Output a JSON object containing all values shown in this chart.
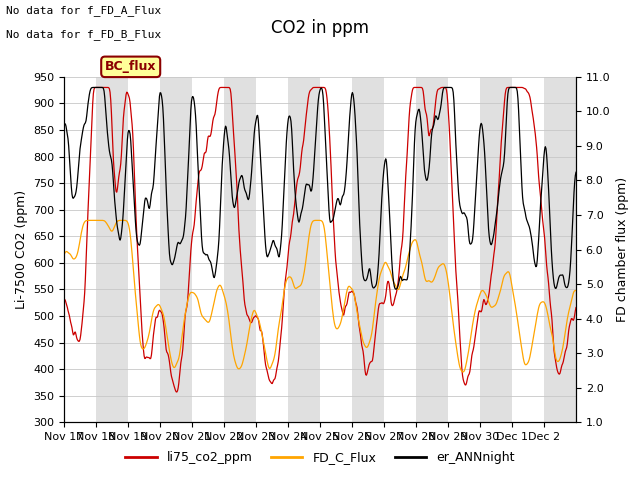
{
  "title": "CO2 in ppm",
  "ylabel_left": "Li-7500 CO2 (ppm)",
  "ylabel_right": "FD chamber flux (ppm)",
  "ylim_left": [
    300,
    950
  ],
  "ylim_right": [
    1.0,
    11.0
  ],
  "yticks_left": [
    300,
    350,
    400,
    450,
    500,
    550,
    600,
    650,
    700,
    750,
    800,
    850,
    900,
    950
  ],
  "yticks_right": [
    1.0,
    2.0,
    3.0,
    4.0,
    5.0,
    6.0,
    7.0,
    8.0,
    9.0,
    10.0,
    11.0
  ],
  "xtick_labels": [
    "Nov 17",
    "Nov 18",
    "Nov 19",
    "Nov 20",
    "Nov 21",
    "Nov 22",
    "Nov 23",
    "Nov 24",
    "Nov 25",
    "Nov 26",
    "Nov 27",
    "Nov 28",
    "Nov 29",
    "Nov 30",
    "Dec 1",
    "Dec 2"
  ],
  "no_data_texts": [
    "No data for f_FD_A_Flux",
    "No data for f_FD_B_Flux"
  ],
  "bc_flux_label": "BC_flux",
  "legend_entries": [
    "li75_co2_ppm",
    "FD_C_Flux",
    "er_ANNnight"
  ],
  "legend_colors": [
    "#cc0000",
    "#ffa500",
    "#000000"
  ],
  "line_colors": [
    "#cc0000",
    "#ffa500",
    "#000000"
  ],
  "background_color": "#ffffff",
  "grid_color": "#c8c8c8",
  "gray_band_color": "#e0e0e0",
  "bc_flux_box_facecolor": "#ffff99",
  "bc_flux_box_edgecolor": "#8b0000",
  "title_fontsize": 12,
  "axis_label_fontsize": 9,
  "tick_label_fontsize": 8,
  "legend_fontsize": 9,
  "annotation_fontsize": 8,
  "n_days": 16,
  "gray_band_days": [
    1,
    3,
    5,
    7,
    9,
    11,
    13,
    15
  ]
}
